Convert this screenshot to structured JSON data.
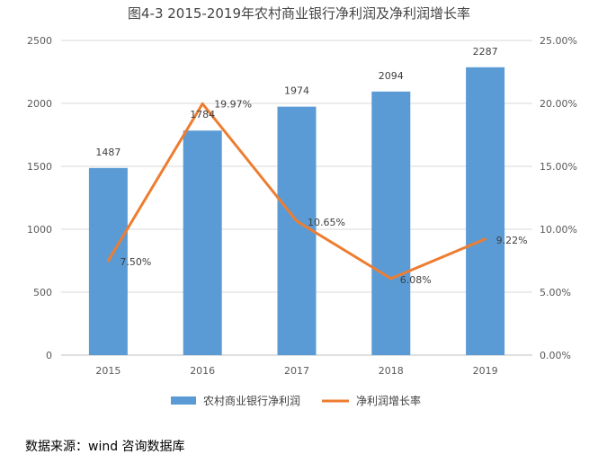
{
  "colors": {
    "bar": "#5b9bd5",
    "line": "#ed7d31",
    "grid": "#d9d9d9",
    "axis_text": "#595959",
    "label_text": "#404040"
  },
  "chart_data": {
    "type": "bar",
    "title": "图4-3 2015-2019年农村商业银行净利润及净利润增长率",
    "categories": [
      "2015",
      "2016",
      "2017",
      "2018",
      "2019"
    ],
    "series": [
      {
        "name": "农村商业银行净利润",
        "type": "bar",
        "axis": "left",
        "values": [
          1487,
          1784,
          1974,
          2094,
          2287
        ]
      },
      {
        "name": "净利润增长率",
        "type": "line",
        "axis": "right",
        "values": [
          7.5,
          19.97,
          10.65,
          6.08,
          9.22
        ]
      }
    ],
    "bar_labels": [
      "1487",
      "1784",
      "1974",
      "2094",
      "2287"
    ],
    "line_labels": [
      "7.50%",
      "19.97%",
      "10.65%",
      "6.08%",
      "9.22%"
    ],
    "y_left": {
      "ylim": [
        0,
        2500
      ],
      "ticks": [
        "0",
        "500",
        "1000",
        "1500",
        "2000",
        "2500"
      ]
    },
    "y_right": {
      "ylim": [
        0,
        25
      ],
      "ticks": [
        "0.00%",
        "5.00%",
        "10.00%",
        "15.00%",
        "20.00%",
        "25.00%"
      ]
    },
    "grid": true,
    "legend_position": "bottom"
  },
  "source_note": "数据来源：wind 咨询数据库"
}
